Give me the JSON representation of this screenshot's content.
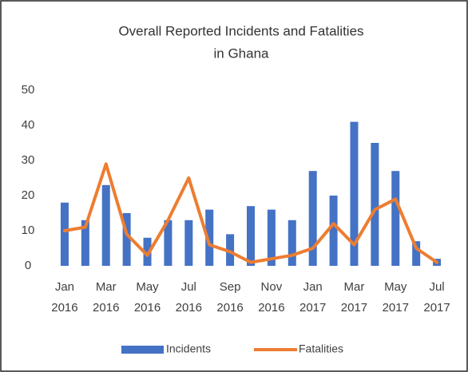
{
  "chart_data": {
    "type": "bar_line",
    "title": [
      "Overall Reported Incidents and Fatalities",
      "in Ghana"
    ],
    "categories": [
      "Jan 2016",
      null,
      "Mar 2016",
      null,
      "May 2016",
      null,
      "Jul 2016",
      null,
      "Sep 2016",
      null,
      "Nov 2016",
      null,
      "Jan 2017",
      null,
      "Mar 2017",
      null,
      "May 2017",
      null,
      "Jul 2017"
    ],
    "series": [
      {
        "name": "Incidents",
        "type": "bar",
        "color": "#4472c4",
        "values": [
          18,
          13,
          23,
          15,
          8,
          13,
          13,
          16,
          9,
          17,
          16,
          13,
          27,
          20,
          41,
          35,
          27,
          7,
          2
        ]
      },
      {
        "name": "Fatalities",
        "type": "line",
        "color": "#ed7d31",
        "values": [
          10,
          11,
          29,
          9,
          3,
          13,
          25,
          6,
          4,
          1,
          2,
          3,
          5,
          12,
          6,
          16,
          19,
          5,
          1
        ]
      }
    ],
    "ylim": [
      0,
      50
    ],
    "yticks": [
      0,
      10,
      20,
      30,
      40,
      50
    ],
    "grid": false,
    "legend": "bottom"
  }
}
